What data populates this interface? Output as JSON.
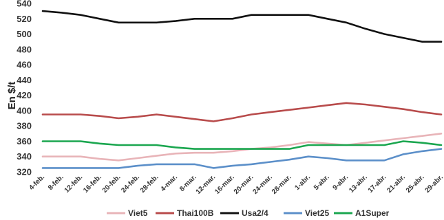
{
  "chart_data": {
    "type": "line",
    "ylabel": "En $/t",
    "xlabel": "",
    "ylim": [
      320,
      540
    ],
    "yticks": [
      320,
      340,
      360,
      380,
      400,
      420,
      440,
      460,
      480,
      500,
      520,
      540
    ],
    "grid": false,
    "legend_position": "bottom",
    "categories": [
      "4-feb.",
      "8-feb.",
      "12-feb.",
      "16-feb.",
      "20-feb.",
      "24-feb.",
      "28-feb.",
      "4-mar.",
      "8-mar.",
      "12-mar.",
      "16-mar.",
      "20-mar.",
      "24-mar.",
      "28-mar.",
      "1-abr.",
      "5-abr.",
      "9-abr.",
      "13-abr.",
      "17-abr.",
      "21-abr.",
      "25-abr.",
      "29-abr."
    ],
    "series": [
      {
        "name": "Viet5",
        "color": "#e8b4b8",
        "values": [
          340,
          340,
          340,
          337,
          335,
          338,
          341,
          344,
          345,
          345,
          347,
          350,
          352,
          355,
          359,
          357,
          355,
          358,
          361,
          364,
          367,
          370
        ]
      },
      {
        "name": "Thai100B",
        "color": "#b84b4b",
        "values": [
          395,
          395,
          395,
          393,
          390,
          392,
          395,
          392,
          389,
          386,
          390,
          395,
          398,
          401,
          404,
          407,
          410,
          408,
          405,
          402,
          398,
          395
        ]
      },
      {
        "name": "Usa2/4",
        "color": "#111111",
        "values": [
          530,
          528,
          525,
          520,
          515,
          515,
          515,
          517,
          520,
          520,
          520,
          525,
          525,
          525,
          525,
          520,
          515,
          507,
          500,
          495,
          490,
          490
        ]
      },
      {
        "name": "Viet25",
        "color": "#5b8fc9",
        "values": [
          325,
          325,
          325,
          325,
          325,
          328,
          330,
          330,
          330,
          325,
          328,
          330,
          333,
          336,
          340,
          338,
          335,
          335,
          335,
          343,
          347,
          350
        ]
      },
      {
        "name": "A1Super",
        "color": "#1aa64f",
        "values": [
          360,
          360,
          360,
          357,
          355,
          355,
          355,
          352,
          350,
          350,
          350,
          350,
          350,
          350,
          355,
          355,
          355,
          355,
          355,
          360,
          358,
          355
        ]
      }
    ]
  }
}
